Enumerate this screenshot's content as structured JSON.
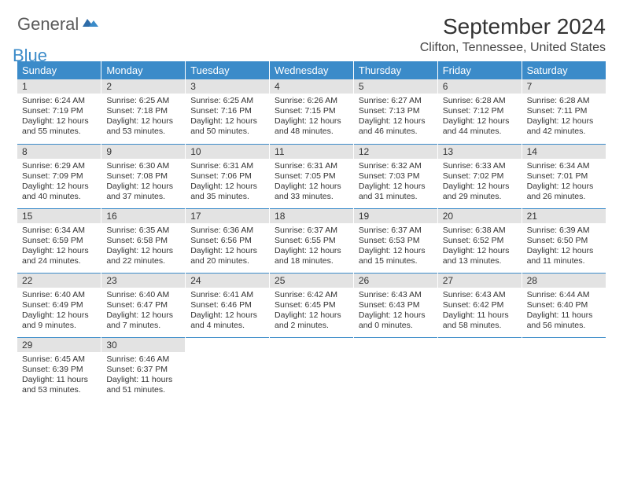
{
  "brand": {
    "word1": "General",
    "word2": "Blue"
  },
  "title": "September 2024",
  "location": "Clifton, Tennessee, United States",
  "colors": {
    "header_bg": "#3b8bc9",
    "header_text": "#ffffff",
    "daynum_bg": "#e3e3e3",
    "row_border": "#3b8bc9",
    "text": "#333333",
    "logo_gray": "#5a5a5a",
    "logo_blue": "#3b8bc9"
  },
  "typography": {
    "title_fontsize": 28,
    "location_fontsize": 16,
    "weekday_fontsize": 13,
    "daynum_fontsize": 12,
    "cell_fontsize": 10.5
  },
  "weekdays": [
    "Sunday",
    "Monday",
    "Tuesday",
    "Wednesday",
    "Thursday",
    "Friday",
    "Saturday"
  ],
  "labels": {
    "sunrise": "Sunrise: ",
    "sunset": "Sunset: ",
    "daylight": "Daylight: "
  },
  "weeks": [
    [
      {
        "n": "1",
        "sr": "6:24 AM",
        "ss": "7:19 PM",
        "dl": "12 hours and 55 minutes."
      },
      {
        "n": "2",
        "sr": "6:25 AM",
        "ss": "7:18 PM",
        "dl": "12 hours and 53 minutes."
      },
      {
        "n": "3",
        "sr": "6:25 AM",
        "ss": "7:16 PM",
        "dl": "12 hours and 50 minutes."
      },
      {
        "n": "4",
        "sr": "6:26 AM",
        "ss": "7:15 PM",
        "dl": "12 hours and 48 minutes."
      },
      {
        "n": "5",
        "sr": "6:27 AM",
        "ss": "7:13 PM",
        "dl": "12 hours and 46 minutes."
      },
      {
        "n": "6",
        "sr": "6:28 AM",
        "ss": "7:12 PM",
        "dl": "12 hours and 44 minutes."
      },
      {
        "n": "7",
        "sr": "6:28 AM",
        "ss": "7:11 PM",
        "dl": "12 hours and 42 minutes."
      }
    ],
    [
      {
        "n": "8",
        "sr": "6:29 AM",
        "ss": "7:09 PM",
        "dl": "12 hours and 40 minutes."
      },
      {
        "n": "9",
        "sr": "6:30 AM",
        "ss": "7:08 PM",
        "dl": "12 hours and 37 minutes."
      },
      {
        "n": "10",
        "sr": "6:31 AM",
        "ss": "7:06 PM",
        "dl": "12 hours and 35 minutes."
      },
      {
        "n": "11",
        "sr": "6:31 AM",
        "ss": "7:05 PM",
        "dl": "12 hours and 33 minutes."
      },
      {
        "n": "12",
        "sr": "6:32 AM",
        "ss": "7:03 PM",
        "dl": "12 hours and 31 minutes."
      },
      {
        "n": "13",
        "sr": "6:33 AM",
        "ss": "7:02 PM",
        "dl": "12 hours and 29 minutes."
      },
      {
        "n": "14",
        "sr": "6:34 AM",
        "ss": "7:01 PM",
        "dl": "12 hours and 26 minutes."
      }
    ],
    [
      {
        "n": "15",
        "sr": "6:34 AM",
        "ss": "6:59 PM",
        "dl": "12 hours and 24 minutes."
      },
      {
        "n": "16",
        "sr": "6:35 AM",
        "ss": "6:58 PM",
        "dl": "12 hours and 22 minutes."
      },
      {
        "n": "17",
        "sr": "6:36 AM",
        "ss": "6:56 PM",
        "dl": "12 hours and 20 minutes."
      },
      {
        "n": "18",
        "sr": "6:37 AM",
        "ss": "6:55 PM",
        "dl": "12 hours and 18 minutes."
      },
      {
        "n": "19",
        "sr": "6:37 AM",
        "ss": "6:53 PM",
        "dl": "12 hours and 15 minutes."
      },
      {
        "n": "20",
        "sr": "6:38 AM",
        "ss": "6:52 PM",
        "dl": "12 hours and 13 minutes."
      },
      {
        "n": "21",
        "sr": "6:39 AM",
        "ss": "6:50 PM",
        "dl": "12 hours and 11 minutes."
      }
    ],
    [
      {
        "n": "22",
        "sr": "6:40 AM",
        "ss": "6:49 PM",
        "dl": "12 hours and 9 minutes."
      },
      {
        "n": "23",
        "sr": "6:40 AM",
        "ss": "6:47 PM",
        "dl": "12 hours and 7 minutes."
      },
      {
        "n": "24",
        "sr": "6:41 AM",
        "ss": "6:46 PM",
        "dl": "12 hours and 4 minutes."
      },
      {
        "n": "25",
        "sr": "6:42 AM",
        "ss": "6:45 PM",
        "dl": "12 hours and 2 minutes."
      },
      {
        "n": "26",
        "sr": "6:43 AM",
        "ss": "6:43 PM",
        "dl": "12 hours and 0 minutes."
      },
      {
        "n": "27",
        "sr": "6:43 AM",
        "ss": "6:42 PM",
        "dl": "11 hours and 58 minutes."
      },
      {
        "n": "28",
        "sr": "6:44 AM",
        "ss": "6:40 PM",
        "dl": "11 hours and 56 minutes."
      }
    ],
    [
      {
        "n": "29",
        "sr": "6:45 AM",
        "ss": "6:39 PM",
        "dl": "11 hours and 53 minutes."
      },
      {
        "n": "30",
        "sr": "6:46 AM",
        "ss": "6:37 PM",
        "dl": "11 hours and 51 minutes."
      },
      null,
      null,
      null,
      null,
      null
    ]
  ]
}
